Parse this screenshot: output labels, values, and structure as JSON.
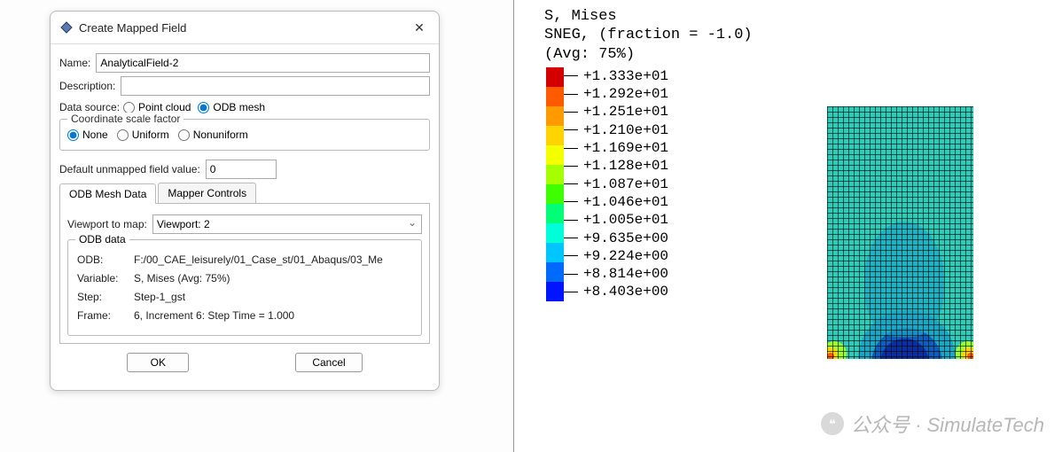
{
  "dialog": {
    "title": "Create Mapped Field",
    "name_label": "Name:",
    "name_value": "AnalyticalField-2",
    "desc_label": "Description:",
    "desc_value": "",
    "data_source_label": "Data source:",
    "ds_point_cloud": "Point cloud",
    "ds_odb_mesh": "ODB mesh",
    "coord_group": "Coordinate scale factor",
    "scale_none": "None",
    "scale_uniform": "Uniform",
    "scale_nonuniform": "Nonuniform",
    "unmapped_label": "Default unmapped field value:",
    "unmapped_value": "0",
    "tab_odb": "ODB Mesh Data",
    "tab_mapper": "Mapper Controls",
    "viewport_label": "Viewport to map:",
    "viewport_value": "Viewport: 2",
    "odb_group": "ODB data",
    "odb_path_label": "ODB:",
    "odb_path_value": "F:/00_CAE_leisurely/01_Case_st/01_Abaqus/03_Me",
    "variable_label": "Variable:",
    "variable_value": "S, Mises (Avg: 75%)",
    "step_label": "Step:",
    "step_value": "Step-1_gst",
    "frame_label": "Frame:",
    "frame_value": "6, Increment    6: Step Time =    1.000",
    "ok": "OK",
    "cancel": "Cancel"
  },
  "viz": {
    "header_line1": "S, Mises",
    "header_line2": "SNEG, (fraction = -1.0)",
    "header_line3": "(Avg: 75%)",
    "legend_colors": [
      "#d40000",
      "#ff5a00",
      "#ff9a00",
      "#ffd400",
      "#f4ff00",
      "#a6ff00",
      "#3eff00",
      "#00ff76",
      "#00ffd8",
      "#00c6ff",
      "#006aff",
      "#0014ff"
    ],
    "legend_values": [
      "+1.333e+01",
      "+1.292e+01",
      "+1.251e+01",
      "+1.210e+01",
      "+1.169e+01",
      "+1.128e+01",
      "+1.087e+01",
      "+1.046e+01",
      "+1.005e+01",
      "+9.635e+00",
      "+9.224e+00",
      "+8.814e+00",
      "+8.403e+00"
    ],
    "contour_colors": {
      "base": "#2ecbb8",
      "mid": "#1aa7c4",
      "deep": "#0d5fbd",
      "deepest": "#0b2fa0",
      "warm1": "#9cff2a",
      "warm2": "#ffd400",
      "hot": "#ff5a00"
    },
    "watermark": "公众号 · SimulateTech"
  }
}
